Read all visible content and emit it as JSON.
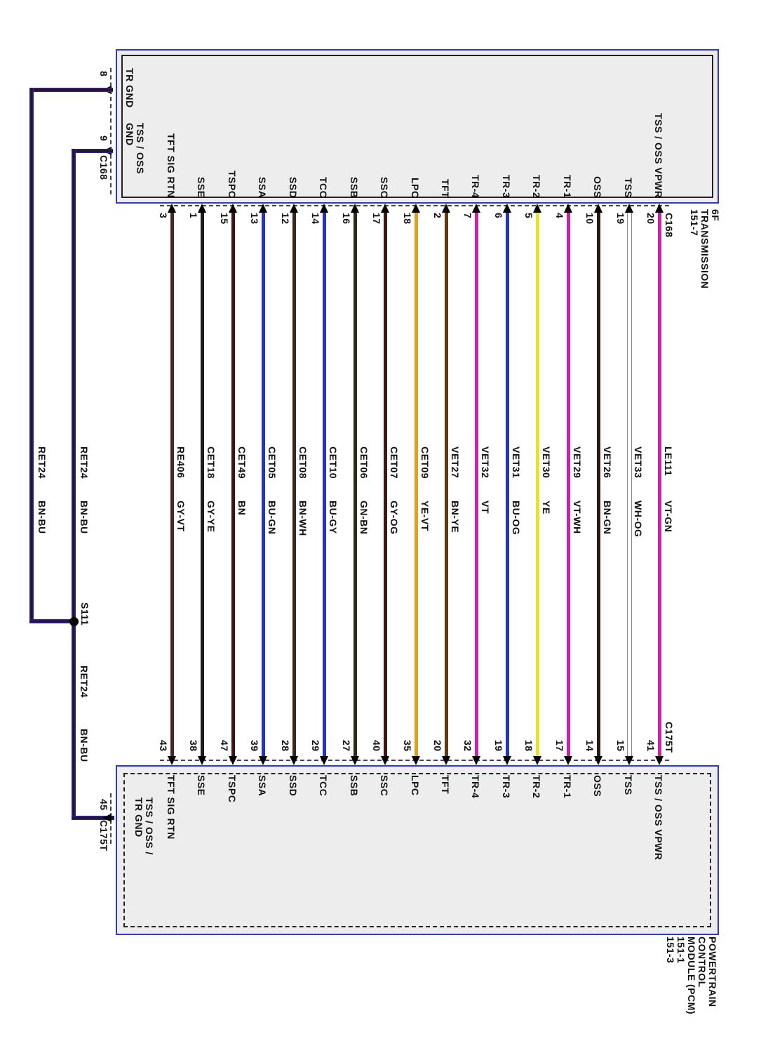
{
  "palette": {
    "box_border": "#2e3cc0",
    "box_fill": "#ededed"
  },
  "top_component": {
    "title_lines": "6F\nTRANSMISSION\n151-7",
    "connector_label": "C168",
    "side_pins": [
      {
        "pin": "8",
        "signal": "TR GND"
      },
      {
        "pin": "9",
        "connector": "C168",
        "signal": "TSS / OSS\nGND"
      }
    ]
  },
  "bottom_component": {
    "title_lines": "POWERTRAIN\nCONTROL\nMODULE (PCM)\n151-1\n151-3",
    "connector_label": "C175T",
    "side_pins": [
      {
        "pin": "45",
        "connector": "C175T",
        "signal": "TSS / OSS /\nTR GND"
      }
    ]
  },
  "splice": {
    "label": "S111"
  },
  "ground_wire": {
    "circuit": "RET24",
    "color_code": "BN-BU",
    "color": "#33101d",
    "edge_color": "#262699"
  },
  "wires": [
    {
      "signal": "TFT SIG RTN",
      "top_pin": "3",
      "bottom_pin": "43",
      "circuit": "RE406",
      "color_code": "GY-VT",
      "color": "#4b2525"
    },
    {
      "signal": "SSE",
      "top_pin": "1",
      "bottom_pin": "38",
      "circuit": "CET18",
      "color_code": "GY-YE",
      "color": "#1c1c1c"
    },
    {
      "signal": "TSPC",
      "top_pin": "15",
      "bottom_pin": "47",
      "circuit": "CET49",
      "color_code": "BN",
      "color": "#401313"
    },
    {
      "signal": "SSA",
      "top_pin": "13",
      "bottom_pin": "39",
      "circuit": "CET05",
      "color_code": "BU-GN",
      "color": "#2433c3"
    },
    {
      "signal": "SSD",
      "top_pin": "12",
      "bottom_pin": "28",
      "circuit": "CET08",
      "color_code": "BN-WH",
      "color": "#40261a"
    },
    {
      "signal": "TCC",
      "top_pin": "14",
      "bottom_pin": "29",
      "circuit": "CET10",
      "color_code": "BU-GY",
      "color": "#2433c3"
    },
    {
      "signal": "SSB",
      "top_pin": "16",
      "bottom_pin": "27",
      "circuit": "CET06",
      "color_code": "GN-BN",
      "color": "#2a2b14"
    },
    {
      "signal": "SSC",
      "top_pin": "17",
      "bottom_pin": "40",
      "circuit": "CET07",
      "color_code": "GY-OG",
      "color": "#421616"
    },
    {
      "signal": "LPC",
      "top_pin": "18",
      "bottom_pin": "35",
      "circuit": "CET09",
      "color_code": "YE-VT",
      "color": "#e0a01e"
    },
    {
      "signal": "TFT",
      "top_pin": "2",
      "bottom_pin": "20",
      "circuit": "VET27",
      "color_code": "BN-YE",
      "color": "#5f3a10"
    },
    {
      "signal": "TR-4",
      "top_pin": "7",
      "bottom_pin": "32",
      "circuit": "VET32",
      "color_code": "VT",
      "color": "#cb22a1"
    },
    {
      "signal": "TR-3",
      "top_pin": "6",
      "bottom_pin": "19",
      "circuit": "VET31",
      "color_code": "BU-OG",
      "color": "#2433c3"
    },
    {
      "signal": "TR-2",
      "top_pin": "5",
      "bottom_pin": "18",
      "circuit": "VET30",
      "color_code": "YE",
      "color": "#e9e030"
    },
    {
      "signal": "TR-1",
      "top_pin": "4",
      "bottom_pin": "17",
      "circuit": "VET29",
      "color_code": "VT-WH",
      "color": "#cb22a1"
    },
    {
      "signal": "OSS",
      "top_pin": "10",
      "bottom_pin": "14",
      "circuit": "VET26",
      "color_code": "BN-GN",
      "color": "#31180e"
    },
    {
      "signal": "TSS",
      "top_pin": "19",
      "bottom_pin": "15",
      "circuit": "VET33",
      "color_code": "WH-OG",
      "color": "#ffffff",
      "outline": "#8a8a8a"
    },
    {
      "signal": "TSS / OSS VPWR",
      "top_pin": "20",
      "bottom_pin": "41",
      "circuit": "LE111",
      "color_code": "VT-GN",
      "color": "#cb22a1"
    }
  ]
}
